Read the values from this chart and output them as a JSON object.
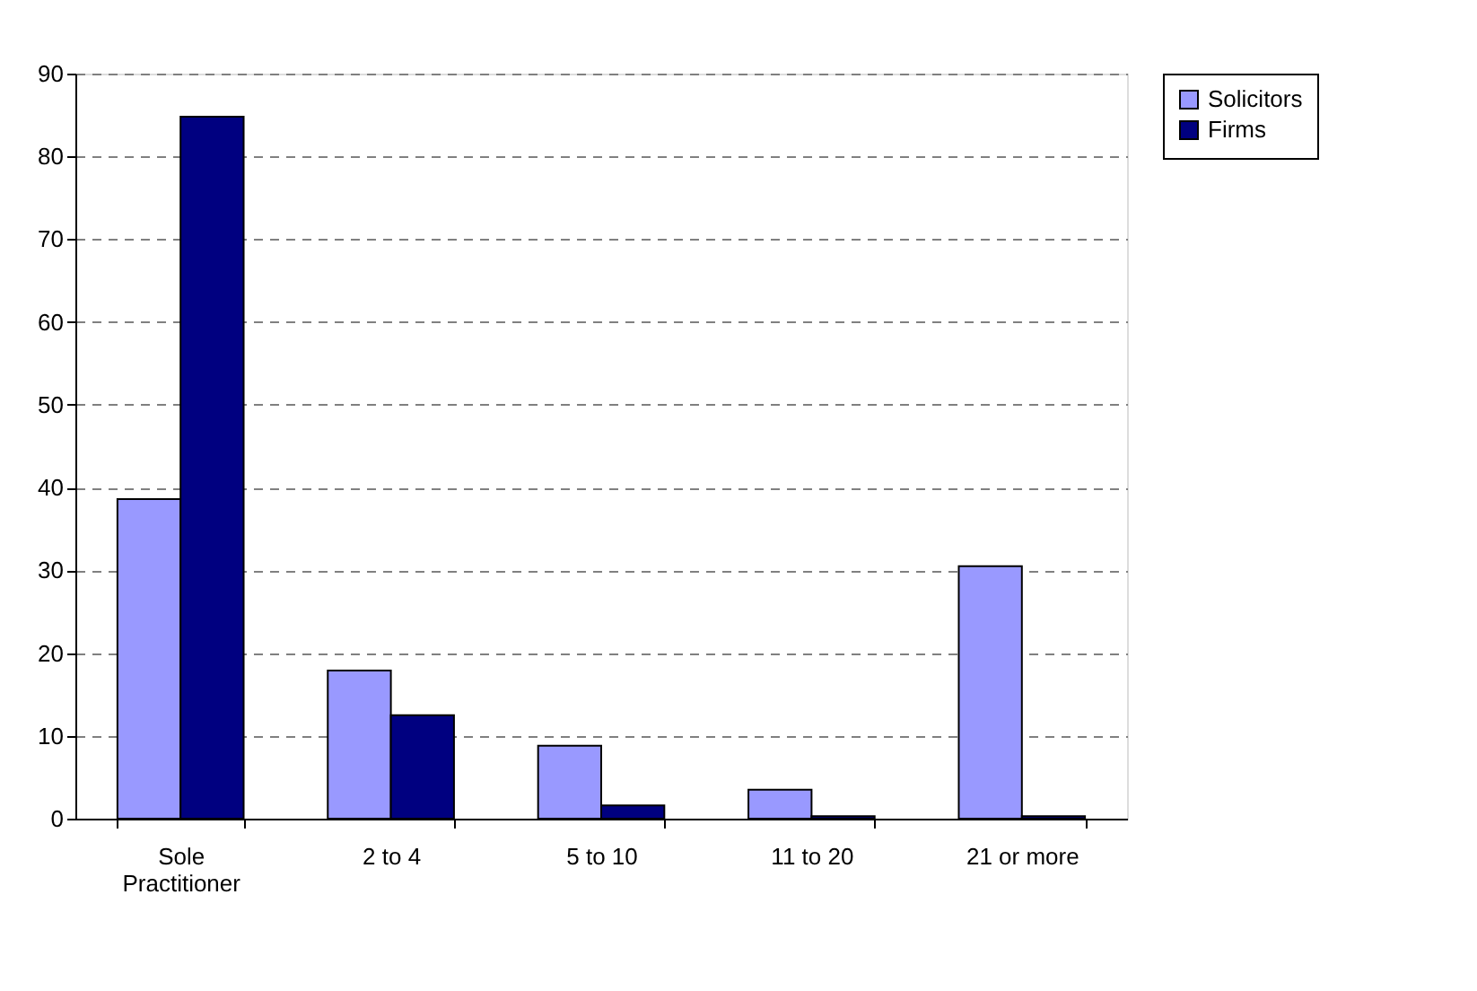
{
  "chart_data": {
    "type": "bar",
    "categories": [
      "Sole Practitioner",
      "2 to 4",
      "5 to 10",
      "11 to 20",
      "21 or more"
    ],
    "series": [
      {
        "name": "Solicitors",
        "color": "#9999ff",
        "values": [
          38.6,
          17.9,
          8.8,
          3.5,
          30.5
        ]
      },
      {
        "name": "Firms",
        "color": "#000080",
        "values": [
          84.8,
          12.5,
          1.6,
          0.3,
          0.3
        ]
      }
    ],
    "ylim": [
      0,
      90
    ],
    "yticks": [
      0,
      10,
      20,
      30,
      40,
      50,
      60,
      70,
      80,
      90
    ],
    "grid": "y",
    "legend": "right"
  }
}
